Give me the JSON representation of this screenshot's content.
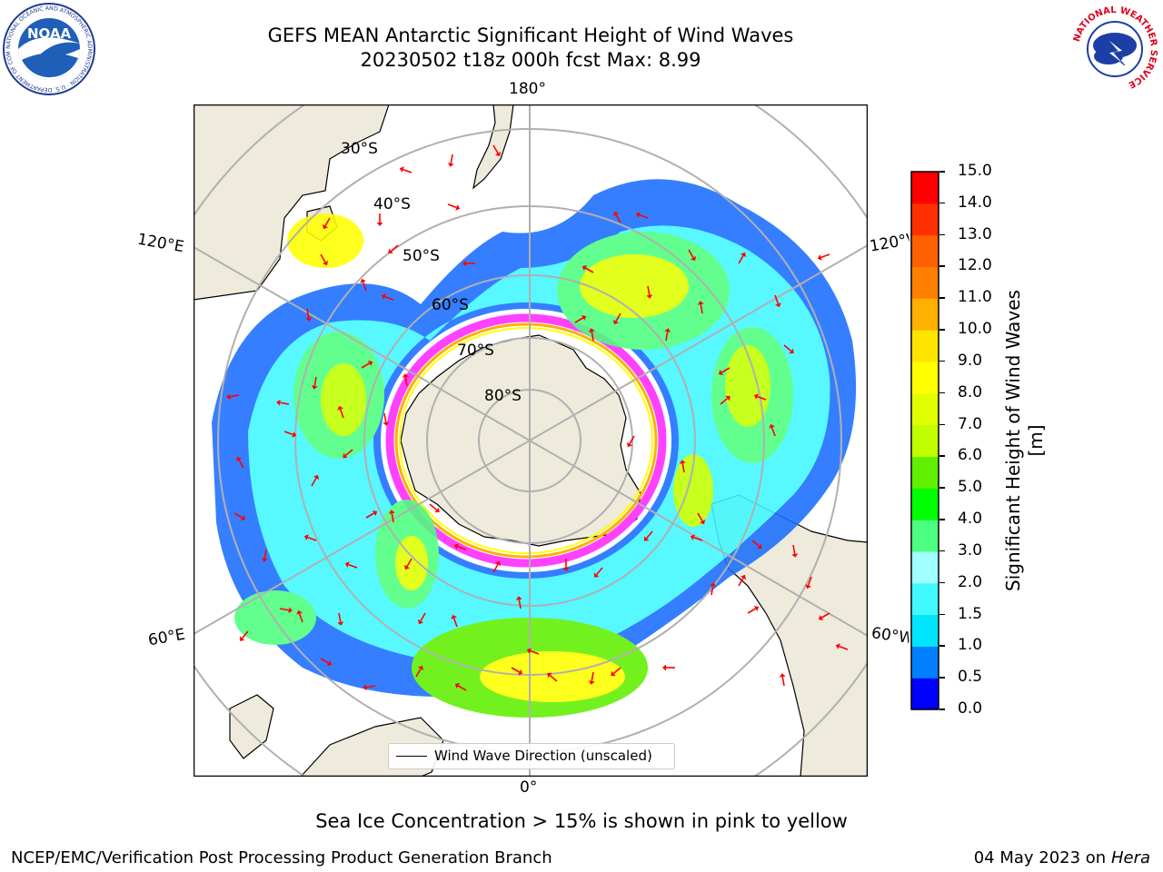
{
  "title": {
    "line1": "GEFS MEAN Antarctic Significant Height of Wind Waves",
    "line2": "20230502 t18z 000h fcst   Max: 8.99"
  },
  "map": {
    "lon_labels": {
      "top": "180°",
      "bottom": "0°",
      "left_upper": "120°E",
      "left_lower": "60°E",
      "right_upper": "120°W",
      "right_lower": "60°W"
    },
    "lat_labels": [
      "30°S",
      "40°S",
      "50°S",
      "60°S",
      "70°S",
      "80°S"
    ],
    "legend": "Wind Wave Direction (unscaled)",
    "arrow_color": "#ff0000",
    "land_color": "#efebdc",
    "ice_colors": [
      "#ff40ff",
      "#ffb000",
      "#ffff00"
    ]
  },
  "colorbar": {
    "label": "Significant Height of Wind Waves [m]",
    "ticks": [
      "0.0",
      "0.5",
      "1.0",
      "1.5",
      "2.0",
      "3.0",
      "4.0",
      "5.0",
      "6.0",
      "7.0",
      "8.0",
      "9.0",
      "10.0",
      "11.0",
      "12.0",
      "13.0",
      "14.0",
      "15.0"
    ],
    "colors": [
      "#0000ff",
      "#0080ff",
      "#00e5ff",
      "#40f8ff",
      "#a0ffff",
      "#4dff80",
      "#00ff00",
      "#60f000",
      "#c0ff00",
      "#e0ff00",
      "#ffff00",
      "#ffe500",
      "#ffb000",
      "#ff8000",
      "#ff6000",
      "#ff3000",
      "#ff0000"
    ]
  },
  "caption": "Sea Ice Concentration > 15% is shown in pink to yellow",
  "footer": {
    "left": "NCEP/EMC/Verification Post Processing Product Generation Branch",
    "date": "04 May 2023 on",
    "host": "Hera"
  },
  "logos": {
    "noaa": "NOAA",
    "noaa_ring": "NATIONAL OCEANIC AND ATMOSPHERIC ADMINISTRATION · U.S. DEPARTMENT OF COMMERCE ·",
    "nws_ring": "NATIONAL WEATHER SERVICE"
  }
}
